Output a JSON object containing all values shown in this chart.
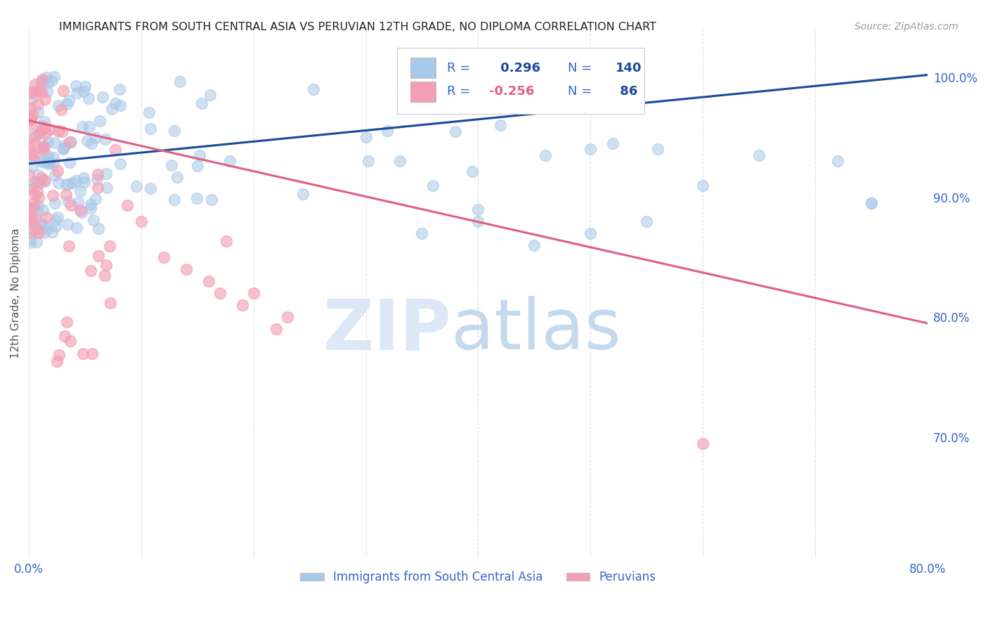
{
  "title": "IMMIGRANTS FROM SOUTH CENTRAL ASIA VS PERUVIAN 12TH GRADE, NO DIPLOMA CORRELATION CHART",
  "source": "Source: ZipAtlas.com",
  "ylabel": "12th Grade, No Diploma",
  "ytick_values": [
    1.0,
    0.9,
    0.8,
    0.7
  ],
  "xlim": [
    0.0,
    0.8
  ],
  "ylim": [
    0.6,
    1.04
  ],
  "blue_R": 0.296,
  "blue_N": 140,
  "pink_R": -0.256,
  "pink_N": 86,
  "legend_blue": "Immigrants from South Central Asia",
  "legend_pink": "Peruvians",
  "blue_color": "#a8c8e8",
  "pink_color": "#f4a0b4",
  "blue_line_color": "#1a4a9a",
  "pink_line_color": "#e06080",
  "title_color": "#222222",
  "axis_label_color": "#3366cc",
  "background_color": "#ffffff",
  "grid_color": "#dddddd",
  "blue_line_y0": 0.928,
  "blue_line_y1": 1.002,
  "pink_line_y0": 0.964,
  "pink_line_y1": 0.795
}
